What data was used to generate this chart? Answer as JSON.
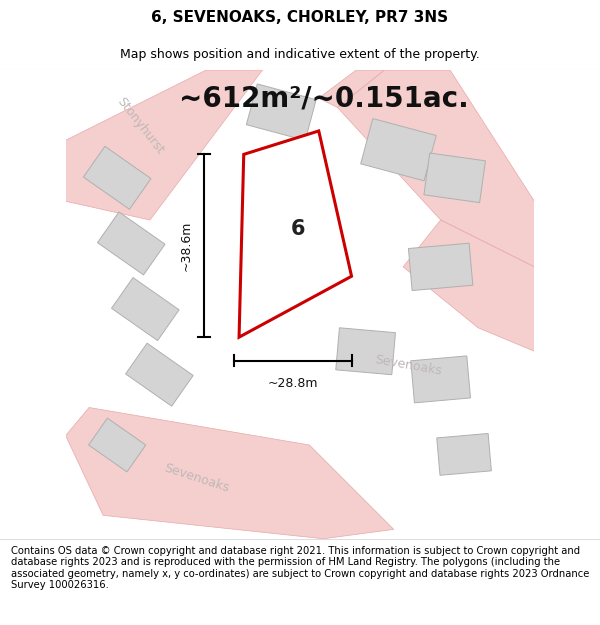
{
  "title": "6, SEVENOAKS, CHORLEY, PR7 3NS",
  "subtitle": "Map shows position and indicative extent of the property.",
  "area_text": "~612m²/~0.151ac.",
  "width_label": "~28.8m",
  "height_label": "~38.6m",
  "house_number": "6",
  "footer": "Contains OS data © Crown copyright and database right 2021. This information is subject to Crown copyright and database rights 2023 and is reproduced with the permission of HM Land Registry. The polygons (including the associated geometry, namely x, y co-ordinates) are subject to Crown copyright and database rights 2023 Ordnance Survey 100026316.",
  "map_bg": "#edecea",
  "road_fill": "#f5cece",
  "road_edge": "#e8a8a8",
  "plot_line_color": "#cc0000",
  "building_fill": "#d4d4d4",
  "building_edge": "#b0b0b0",
  "title_fontsize": 11,
  "subtitle_fontsize": 9,
  "area_fontsize": 20,
  "label_fontsize": 9,
  "footer_fontsize": 7.2,
  "road_label_color": "#c0b8b8",
  "road_label_size": 9
}
